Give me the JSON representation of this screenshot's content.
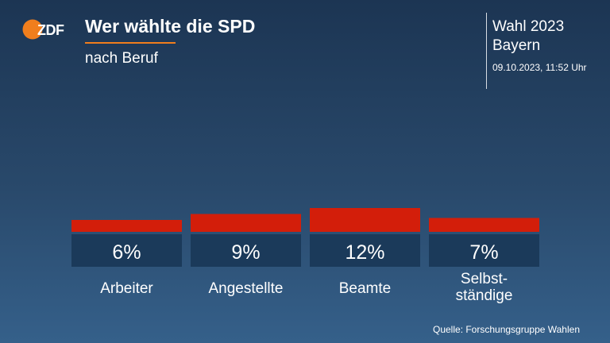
{
  "header": {
    "logo_text": "ZDF",
    "title": "Wer wählte die SPD",
    "subtitle": "nach Beruf",
    "election": "Wahl 2023",
    "region": "Bayern",
    "timestamp": "09.10.2023, 11:52 Uhr"
  },
  "source": "Quelle: Forschungsgruppe Wahlen",
  "colors": {
    "bar": "#d31e0a",
    "value_box": "#1b3a5a",
    "accent": "#f07e1d"
  },
  "chart_data": {
    "type": "bar",
    "title": "Wer wählte die SPD",
    "subtitle": "nach Beruf",
    "categories": [
      "Arbeiter",
      "Angestellte",
      "Beamte",
      "Selbst-\nständige"
    ],
    "values": [
      6,
      9,
      12,
      7
    ],
    "value_labels": [
      "6%",
      "9%",
      "12%",
      "7%"
    ],
    "unit": "%",
    "ylim": [
      0,
      12
    ],
    "grid": false,
    "legend": "none"
  }
}
